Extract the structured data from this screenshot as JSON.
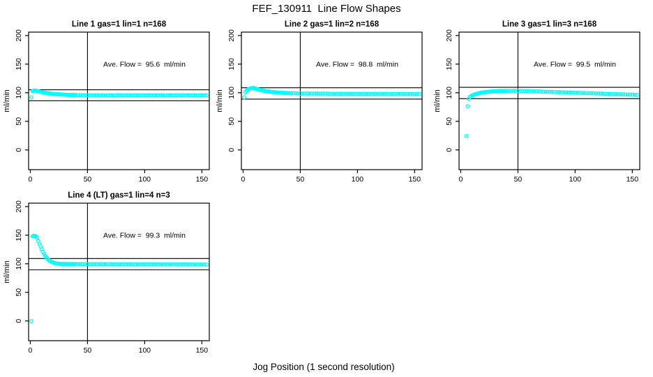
{
  "title": "FEF_130911  Line Flow Shapes",
  "xlabel": "Jog Position (1 second resolution)",
  "colors": {
    "points": "#00FFFF",
    "axis": "#000000",
    "text": "#000000",
    "background": "#FFFFFF"
  },
  "chart_data": [
    {
      "type": "scatter",
      "title": "Line 1 gas=1 lin=1 n=168",
      "annotation": "Ave. Flow =  95.6  ml/min",
      "ave_flow": 95.6,
      "ylabel": "ml/min",
      "xticks": [
        0,
        50,
        100,
        150
      ],
      "yticks": [
        0,
        50,
        100,
        150,
        200
      ],
      "xlim": [
        -1.5,
        156.5
      ],
      "ylim": [
        -34.5,
        206
      ],
      "vline_x": 50,
      "hlines": [
        105.2,
        86.0
      ],
      "grid": false,
      "x": [
        1,
        2,
        3,
        4,
        5,
        6,
        7,
        8,
        9,
        10,
        11,
        12,
        13,
        14,
        15,
        16,
        17,
        18,
        19,
        20,
        21,
        22,
        23,
        24,
        25,
        26,
        27,
        28,
        29,
        30,
        31,
        32,
        33,
        34,
        35,
        36,
        37,
        38,
        39,
        40,
        42,
        44,
        46,
        48,
        50,
        52,
        54,
        56,
        58,
        60,
        62,
        64,
        66,
        68,
        70,
        72,
        74,
        76,
        78,
        80,
        82,
        84,
        86,
        88,
        90,
        92,
        94,
        96,
        98,
        100,
        102,
        104,
        106,
        108,
        110,
        112,
        114,
        116,
        118,
        120,
        122,
        124,
        126,
        128,
        130,
        132,
        134,
        136,
        138,
        140,
        142,
        144,
        146,
        148,
        150,
        152,
        154
      ],
      "y": [
        92,
        102.8,
        103.6,
        103.9,
        103.7,
        103.1,
        102.5,
        102,
        101.5,
        101,
        100.6,
        100.2,
        99.9,
        99.6,
        99.2,
        99,
        98.7,
        98.5,
        98.2,
        98,
        97.8,
        97.6,
        97.5,
        97.3,
        97.2,
        97,
        96.9,
        96.8,
        96.7,
        96.6,
        96.5,
        96.4,
        96.3,
        96.3,
        96.2,
        96.1,
        96.1,
        96,
        96,
        95.9,
        95.8,
        95.8,
        95.7,
        95.6,
        95.6,
        95.5,
        95.4,
        95.6,
        95.5,
        95.3,
        95.5,
        95.6,
        95.4,
        95.5,
        95.5,
        95.4,
        95.6,
        95.5,
        95.4,
        95.5,
        95.3,
        95.5,
        95.6,
        95.4,
        95.5,
        95.5,
        95.6,
        95.4,
        95.5,
        95.3,
        95.5,
        95.5,
        95.4,
        95.6,
        95.5,
        95.4,
        95.5,
        95.5,
        95.3,
        95.6,
        95.5,
        95.4,
        95.5,
        95.6,
        95.4,
        95.5,
        95.5,
        95.3,
        95.5,
        95.4,
        95.6,
        95.5,
        95.4,
        95.5,
        95.5,
        95.4,
        95.5
      ]
    },
    {
      "type": "scatter",
      "title": "Line 2 gas=1 lin=2 n=168",
      "annotation": "Ave. Flow =  98.8  ml/min",
      "ave_flow": 98.8,
      "ylabel": "ml/min",
      "xticks": [
        0,
        50,
        100,
        150
      ],
      "yticks": [
        0,
        50,
        100,
        150,
        200
      ],
      "xlim": [
        -1.5,
        156.5
      ],
      "ylim": [
        -34.5,
        206
      ],
      "vline_x": 50,
      "hlines": [
        108.7,
        88.9
      ],
      "grid": false,
      "x": [
        1,
        2,
        3,
        4,
        5,
        6,
        7,
        8,
        9,
        10,
        11,
        12,
        13,
        14,
        15,
        16,
        17,
        18,
        19,
        20,
        21,
        22,
        23,
        24,
        25,
        26,
        27,
        28,
        29,
        30,
        31,
        32,
        33,
        34,
        35,
        36,
        37,
        38,
        39,
        40,
        42,
        44,
        46,
        48,
        50,
        52,
        54,
        56,
        58,
        60,
        62,
        64,
        66,
        68,
        70,
        72,
        74,
        76,
        78,
        80,
        82,
        84,
        86,
        88,
        90,
        92,
        94,
        96,
        98,
        100,
        102,
        104,
        106,
        108,
        110,
        112,
        114,
        116,
        118,
        120,
        122,
        124,
        126,
        128,
        130,
        132,
        134,
        136,
        138,
        140,
        142,
        144,
        146,
        148,
        150,
        152,
        154
      ],
      "y": [
        92,
        100.8,
        103.5,
        105.3,
        106.5,
        107.3,
        107.9,
        108.2,
        108.4,
        107.6,
        107,
        106.4,
        105.8,
        105.3,
        104.8,
        104.3,
        103.9,
        103.5,
        103.1,
        102.8,
        102.5,
        102.2,
        101.9,
        101.7,
        101.4,
        101.2,
        101,
        100.8,
        100.6,
        100.5,
        100.3,
        100.2,
        100,
        99.9,
        99.8,
        99.7,
        99.6,
        99.5,
        99.4,
        99.3,
        99.2,
        99,
        98.9,
        98.8,
        98.7,
        98.6,
        98.7,
        98.5,
        98.6,
        98.5,
        98.4,
        98.5,
        98.4,
        98.3,
        98.4,
        98.3,
        98.2,
        98.3,
        98.2,
        98.1,
        98.2,
        98.1,
        98.2,
        98.1,
        98,
        98.1,
        98,
        98.1,
        98,
        97.9,
        98,
        98,
        97.9,
        98,
        97.9,
        97.8,
        97.9,
        97.9,
        97.8,
        97.9,
        97.8,
        97.9,
        97.8,
        97.7,
        97.8,
        97.8,
        97.7,
        97.8,
        97.7,
        97.8,
        97.7,
        97.6,
        97.7,
        97.7,
        97.6,
        97.6,
        97.7
      ]
    },
    {
      "type": "scatter",
      "title": "Line 3 gas=1 lin=3 n=168",
      "annotation": "Ave. Flow =  99.5  ml/min",
      "ave_flow": 99.5,
      "ylabel": "ml/min",
      "xticks": [
        0,
        50,
        100,
        150
      ],
      "yticks": [
        0,
        50,
        100,
        150,
        200
      ],
      "xlim": [
        -1.5,
        156.5
      ],
      "ylim": [
        -34.5,
        206
      ],
      "vline_x": 50,
      "hlines": [
        109.5,
        89.6
      ],
      "grid": false,
      "x": [
        5,
        6,
        7,
        8,
        9,
        10,
        11,
        12,
        13,
        14,
        15,
        16,
        17,
        18,
        19,
        20,
        21,
        22,
        23,
        24,
        25,
        26,
        27,
        28,
        29,
        30,
        31,
        32,
        33,
        34,
        35,
        36,
        37,
        38,
        39,
        40,
        42,
        44,
        46,
        48,
        50,
        52,
        54,
        56,
        58,
        60,
        62,
        64,
        66,
        68,
        70,
        72,
        74,
        76,
        78,
        80,
        82,
        84,
        86,
        88,
        90,
        92,
        94,
        96,
        98,
        100,
        102,
        104,
        106,
        108,
        110,
        112,
        114,
        116,
        118,
        120,
        122,
        124,
        126,
        128,
        130,
        132,
        134,
        136,
        138,
        140,
        142,
        144,
        146,
        148,
        150,
        152,
        154
      ],
      "y": [
        24.5,
        76.5,
        89,
        92.3,
        94,
        95.3,
        96.2,
        96.9,
        97.6,
        98.2,
        98.8,
        99.2,
        99.7,
        100.1,
        100.4,
        100.7,
        101,
        101.3,
        101.5,
        101.7,
        101.9,
        102,
        102.2,
        102.3,
        102.4,
        102.5,
        102.6,
        102.7,
        102.8,
        102.8,
        102.9,
        102.9,
        103,
        103,
        103.1,
        103.1,
        103.2,
        103.2,
        103.3,
        103.3,
        103.3,
        103.2,
        103.1,
        103,
        102.9,
        102.7,
        102.6,
        102.5,
        102.3,
        102.2,
        102.1,
        101.9,
        101.8,
        101.7,
        101.5,
        101.4,
        101.3,
        101.1,
        101,
        100.9,
        100.7,
        100.6,
        100.4,
        100.3,
        100.2,
        100,
        99.9,
        99.8,
        99.6,
        99.5,
        99.3,
        99.2,
        99.1,
        98.9,
        98.8,
        98.7,
        98.5,
        98.4,
        98.2,
        98.1,
        98,
        97.8,
        97.7,
        97.6,
        97.4,
        97.3,
        97.1,
        97,
        96.9,
        96.7,
        96.6,
        96.4,
        96.3
      ]
    },
    {
      "type": "scatter",
      "title": "Line 4 (LT) gas=1 lin=4 n=3",
      "annotation": "Ave. Flow =  99.3  ml/min",
      "ave_flow": 99.3,
      "ylabel": "ml/min",
      "xticks": [
        0,
        50,
        100,
        150
      ],
      "yticks": [
        0,
        50,
        100,
        150,
        200
      ],
      "xlim": [
        -1.5,
        156.5
      ],
      "ylim": [
        -34.5,
        206
      ],
      "vline_x": 50,
      "hlines": [
        109.2,
        89.4
      ],
      "grid": false,
      "x": [
        1,
        2,
        3,
        4,
        5,
        6,
        7,
        8,
        9,
        10,
        11,
        12,
        13,
        14,
        15,
        16,
        17,
        18,
        19,
        20,
        21,
        22,
        23,
        24,
        25,
        26,
        27,
        28,
        29,
        30,
        31,
        32,
        33,
        34,
        35,
        36,
        37,
        38,
        39,
        40,
        42,
        44,
        46,
        48,
        50,
        52,
        54,
        56,
        58,
        60,
        62,
        64,
        66,
        68,
        70,
        72,
        74,
        76,
        78,
        80,
        82,
        84,
        86,
        88,
        90,
        92,
        94,
        96,
        98,
        100,
        102,
        104,
        106,
        108,
        110,
        112,
        114,
        116,
        118,
        120,
        122,
        124,
        126,
        128,
        130,
        132,
        134,
        136,
        138,
        140,
        142,
        144,
        146,
        148,
        150,
        152,
        154
      ],
      "y": [
        -0.5,
        148.3,
        148.8,
        148.6,
        147.8,
        144.5,
        139.8,
        134.8,
        130,
        125.3,
        121,
        117.2,
        113.9,
        111.1,
        108.8,
        106.9,
        105.3,
        104,
        102.9,
        102.1,
        101.4,
        100.9,
        100.5,
        100.2,
        100,
        99.9,
        99.8,
        99.7,
        99.7,
        99.6,
        99.6,
        99.7,
        99.6,
        99.5,
        99.6,
        99.7,
        99.5,
        99.6,
        99.5,
        99.6,
        99.5,
        99.6,
        99.5,
        99.4,
        99.5,
        99.6,
        99.4,
        99.5,
        99.5,
        99.4,
        99.5,
        99.3,
        99.4,
        99.5,
        99.4,
        99.3,
        99.4,
        99.3,
        99.2,
        99.3,
        99.4,
        99.2,
        99.3,
        99.2,
        99.1,
        99.2,
        99.3,
        99.1,
        99.2,
        99.1,
        99,
        99.1,
        99.2,
        99,
        99.1,
        99,
        98.9,
        99,
        99.1,
        98.9,
        99,
        98.9,
        99,
        98.9,
        98.8,
        98.9,
        99,
        98.8,
        98.9,
        98.8,
        98.9,
        98.8,
        98.7,
        98.8,
        98.7,
        98.8,
        98.7
      ]
    }
  ]
}
